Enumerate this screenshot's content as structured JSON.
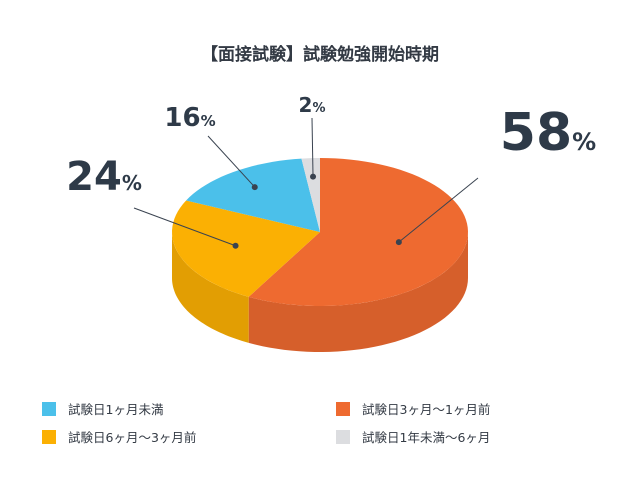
{
  "chart_data": {
    "type": "pie",
    "title": "【面接試験】試験勉強開始時期",
    "unit": "%",
    "categories": [
      "試験日3ヶ月〜1ヶ月前",
      "試験日6ヶ月〜3ヶ月前",
      "試験日1ヶ月未満",
      "試験日1年未満〜6ヶ月"
    ],
    "values": [
      58,
      24,
      16,
      2
    ],
    "colors": [
      "#ee6a30",
      "#fbb003",
      "#4bc0ea",
      "#dcdde0"
    ],
    "legend_order": [
      "試験日1ヶ月未満",
      "試験日3ヶ月〜1ヶ月前",
      "試験日6ヶ月〜3ヶ月前",
      "試験日1年未満〜6ヶ月"
    ],
    "legend_position": "bottom"
  }
}
